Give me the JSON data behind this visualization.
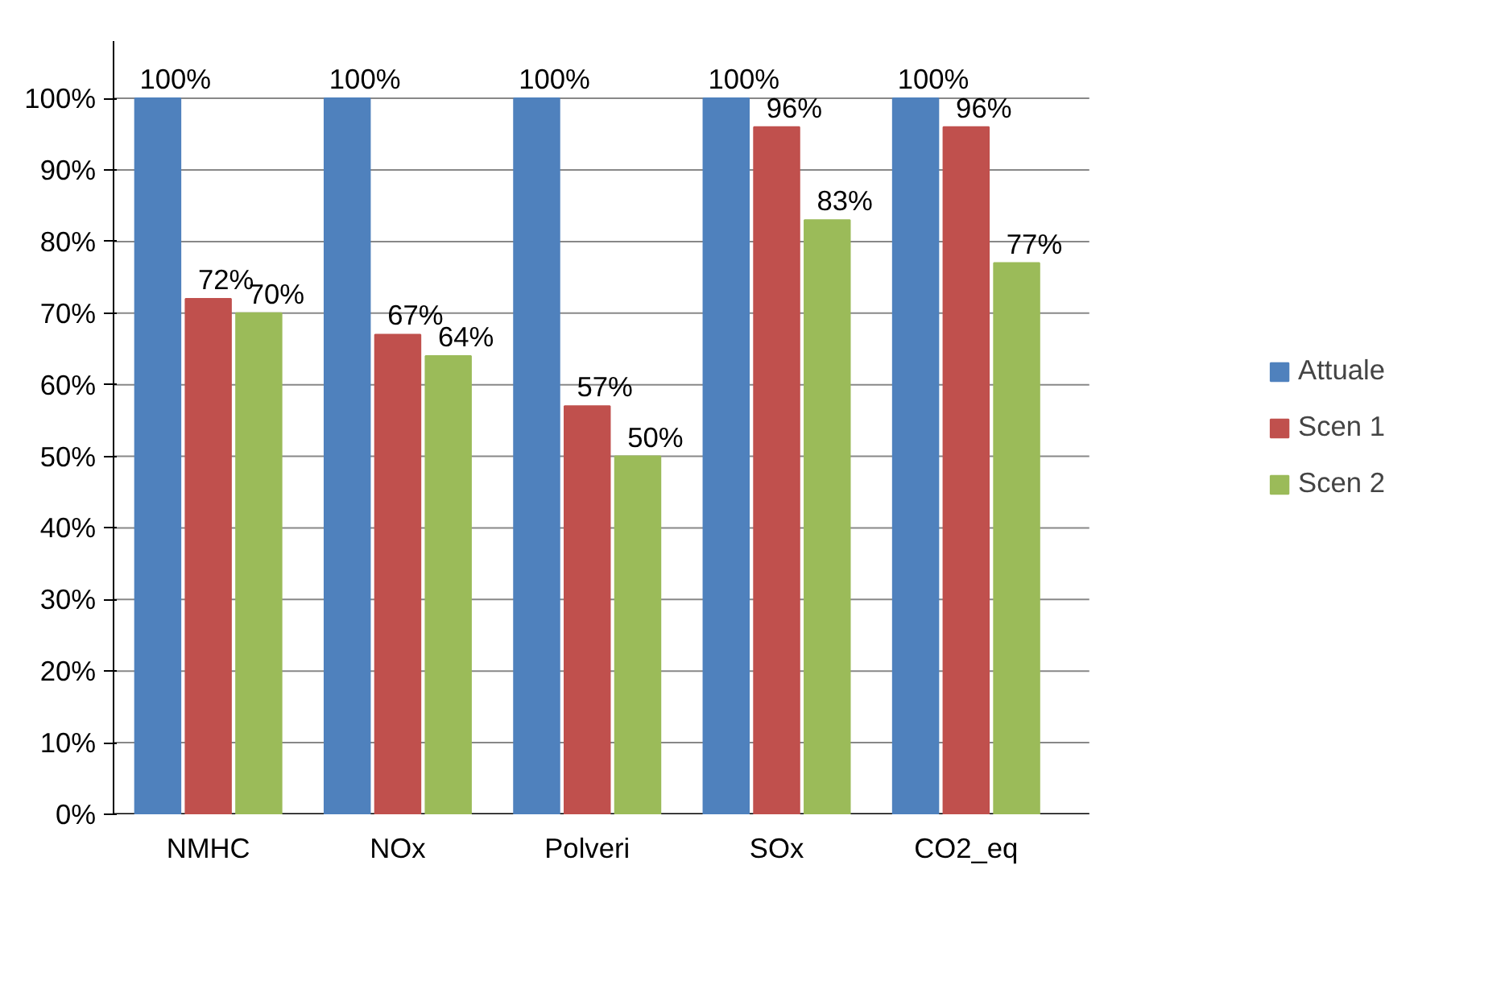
{
  "chart_data": {
    "type": "bar",
    "categories": [
      "NMHC",
      "NOx",
      "Polveri",
      "SOx",
      "CO2_eq"
    ],
    "series": [
      {
        "name": "Attuale",
        "color": "#4f81bd",
        "values": [
          100,
          100,
          100,
          100,
          100
        ],
        "value_labels": [
          "100%",
          "100%",
          "100%",
          "100%",
          "100%"
        ]
      },
      {
        "name": "Scen 1",
        "color": "#c0504d",
        "values": [
          72,
          67,
          57,
          96,
          96
        ],
        "value_labels": [
          "72%",
          "67%",
          "57%",
          "96%",
          "96%"
        ]
      },
      {
        "name": "Scen 2",
        "color": "#9bbb59",
        "values": [
          70,
          64,
          50,
          83,
          77
        ],
        "value_labels": [
          "70%",
          "64%",
          "50%",
          "83%",
          "77%"
        ]
      }
    ],
    "ylim": [
      0,
      108
    ],
    "yticks": [
      {
        "value": 0,
        "label": "0%"
      },
      {
        "value": 10,
        "label": "10%"
      },
      {
        "value": 20,
        "label": "20%"
      },
      {
        "value": 30,
        "label": "30%"
      },
      {
        "value": 40,
        "label": "40%"
      },
      {
        "value": 50,
        "label": "50%"
      },
      {
        "value": 60,
        "label": "60%"
      },
      {
        "value": 70,
        "label": "70%"
      },
      {
        "value": 80,
        "label": "80%"
      },
      {
        "value": 90,
        "label": "90%"
      },
      {
        "value": 100,
        "label": "100%"
      }
    ],
    "grid": "y",
    "legend": "right"
  }
}
